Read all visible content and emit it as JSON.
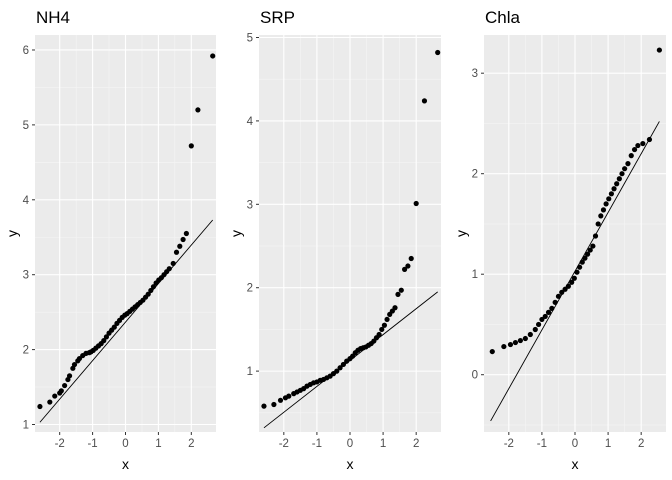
{
  "colors": {
    "panel_background": "#ebebeb",
    "grid_major": "#ffffff",
    "grid_minor": "#f5f5f5",
    "points": "#000000",
    "reference_line": "#000000",
    "tick_text": "#4d4d4d"
  },
  "chart_data": [
    {
      "type": "scatter",
      "title": "NH4",
      "xlabel": "x",
      "ylabel": "y",
      "xlim": [
        -2.75,
        2.75
      ],
      "ylim": [
        0.9,
        6.2
      ],
      "x_ticks": [
        -2,
        -1,
        0,
        1,
        2
      ],
      "x_tick_labels": [
        "-2",
        "-1",
        "0",
        "1",
        "2"
      ],
      "y_ticks": [
        1,
        2,
        3,
        4,
        5,
        6
      ],
      "y_tick_labels": [
        "1",
        "2",
        "3",
        "4",
        "5",
        "6"
      ],
      "grid": true,
      "reference_line": {
        "x": [
          -2.6,
          2.65
        ],
        "y": [
          1.03,
          3.73
        ]
      },
      "points": {
        "x": [
          -2.6,
          -2.3,
          -2.15,
          -2.0,
          -1.95,
          -1.85,
          -1.75,
          -1.7,
          -1.6,
          -1.55,
          -1.45,
          -1.4,
          -1.3,
          -1.2,
          -1.1,
          -1.05,
          -0.98,
          -0.9,
          -0.82,
          -0.74,
          -0.66,
          -0.58,
          -0.5,
          -0.42,
          -0.34,
          -0.26,
          -0.18,
          -0.1,
          -0.02,
          0.05,
          0.13,
          0.21,
          0.29,
          0.37,
          0.45,
          0.53,
          0.61,
          0.69,
          0.77,
          0.85,
          0.93,
          1.01,
          1.09,
          1.17,
          1.25,
          1.33,
          1.45,
          1.55,
          1.65,
          1.75,
          1.85,
          2.0,
          2.2,
          2.65
        ],
        "y": [
          1.24,
          1.3,
          1.38,
          1.42,
          1.45,
          1.52,
          1.6,
          1.65,
          1.75,
          1.8,
          1.85,
          1.88,
          1.92,
          1.95,
          1.96,
          1.97,
          1.99,
          2.02,
          2.05,
          2.08,
          2.12,
          2.17,
          2.22,
          2.26,
          2.3,
          2.35,
          2.39,
          2.43,
          2.46,
          2.48,
          2.51,
          2.54,
          2.57,
          2.6,
          2.63,
          2.66,
          2.7,
          2.74,
          2.79,
          2.84,
          2.89,
          2.93,
          2.96,
          3.0,
          3.04,
          3.08,
          3.15,
          3.3,
          3.38,
          3.47,
          3.55,
          4.72,
          5.2,
          5.92
        ]
      }
    },
    {
      "type": "scatter",
      "title": "SRP",
      "xlabel": "x",
      "ylabel": "y",
      "xlim": [
        -2.75,
        2.75
      ],
      "ylim": [
        0.27,
        5.03
      ],
      "x_ticks": [
        -2,
        -1,
        0,
        1,
        2
      ],
      "x_tick_labels": [
        "-2",
        "-1",
        "0",
        "1",
        "2"
      ],
      "y_ticks": [
        1,
        2,
        3,
        4,
        5
      ],
      "y_tick_labels": [
        "1",
        "2",
        "3",
        "4",
        "5"
      ],
      "grid": true,
      "reference_line": {
        "x": [
          -2.6,
          2.65
        ],
        "y": [
          0.32,
          1.95
        ]
      },
      "points": {
        "x": [
          -2.6,
          -2.3,
          -2.1,
          -1.95,
          -1.85,
          -1.7,
          -1.6,
          -1.5,
          -1.4,
          -1.3,
          -1.2,
          -1.1,
          -1.0,
          -0.9,
          -0.8,
          -0.7,
          -0.6,
          -0.5,
          -0.4,
          -0.3,
          -0.2,
          -0.1,
          0.0,
          0.08,
          0.16,
          0.24,
          0.32,
          0.4,
          0.48,
          0.56,
          0.64,
          0.72,
          0.8,
          0.88,
          0.96,
          1.04,
          1.12,
          1.2,
          1.28,
          1.36,
          1.45,
          1.55,
          1.65,
          1.75,
          1.85,
          2.0,
          2.25,
          2.65
        ],
        "y": [
          0.58,
          0.6,
          0.65,
          0.68,
          0.7,
          0.73,
          0.75,
          0.77,
          0.79,
          0.82,
          0.84,
          0.86,
          0.87,
          0.89,
          0.9,
          0.92,
          0.94,
          0.97,
          1.0,
          1.04,
          1.08,
          1.12,
          1.15,
          1.18,
          1.22,
          1.25,
          1.27,
          1.28,
          1.29,
          1.31,
          1.33,
          1.36,
          1.4,
          1.44,
          1.5,
          1.55,
          1.62,
          1.68,
          1.72,
          1.76,
          1.92,
          1.97,
          2.22,
          2.26,
          2.35,
          3.01,
          4.24,
          4.82
        ]
      }
    },
    {
      "type": "scatter",
      "title": "Chla",
      "xlabel": "x",
      "ylabel": "y",
      "xlim": [
        -2.75,
        2.75
      ],
      "ylim": [
        -0.57,
        3.38
      ],
      "x_ticks": [
        -2,
        -1,
        0,
        1,
        2
      ],
      "x_tick_labels": [
        "-2",
        "-1",
        "0",
        "1",
        "2"
      ],
      "y_ticks": [
        0,
        1,
        2,
        3
      ],
      "y_tick_labels": [
        "0",
        "1",
        "2",
        "3"
      ],
      "grid": true,
      "reference_line": {
        "x": [
          -2.55,
          2.55
        ],
        "y": [
          -0.46,
          2.52
        ]
      },
      "points": {
        "x": [
          -2.5,
          -2.15,
          -1.95,
          -1.8,
          -1.65,
          -1.5,
          -1.35,
          -1.2,
          -1.1,
          -1.0,
          -0.9,
          -0.8,
          -0.7,
          -0.6,
          -0.5,
          -0.4,
          -0.3,
          -0.2,
          -0.1,
          -0.02,
          0.06,
          0.14,
          0.22,
          0.3,
          0.38,
          0.46,
          0.54,
          0.62,
          0.7,
          0.78,
          0.86,
          0.94,
          1.02,
          1.1,
          1.18,
          1.26,
          1.34,
          1.42,
          1.5,
          1.6,
          1.7,
          1.8,
          1.9,
          2.05,
          2.25,
          2.55
        ],
        "y": [
          0.23,
          0.28,
          0.3,
          0.32,
          0.34,
          0.36,
          0.4,
          0.45,
          0.5,
          0.55,
          0.58,
          0.62,
          0.66,
          0.72,
          0.78,
          0.82,
          0.85,
          0.88,
          0.92,
          0.96,
          1.02,
          1.07,
          1.12,
          1.16,
          1.2,
          1.24,
          1.28,
          1.38,
          1.5,
          1.58,
          1.64,
          1.7,
          1.75,
          1.8,
          1.85,
          1.9,
          1.95,
          2.0,
          2.05,
          2.1,
          2.18,
          2.24,
          2.28,
          2.3,
          2.34,
          3.23
        ]
      }
    }
  ]
}
